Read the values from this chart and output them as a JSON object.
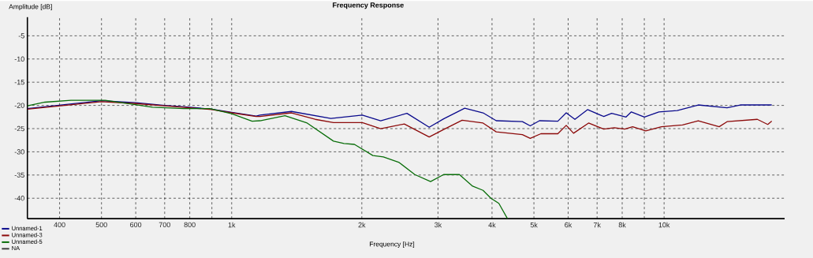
{
  "chart_data": {
    "type": "line",
    "title": "Frequency Response",
    "xlabel": "Frequency [Hz]",
    "ylabel": "Amplitude [dB]",
    "log": "x",
    "grid": true,
    "legend": "bottom left",
    "marker": "none",
    "line_style": "solid",
    "xlim": [
      337,
      19000
    ],
    "ylim": [
      -44.4,
      -1
    ],
    "xticks": [
      400,
      500,
      600,
      700,
      800,
      {
        "value": 900,
        "label": null
      },
      {
        "value": 1000,
        "label": "1k"
      },
      {
        "value": 2000,
        "label": "2k"
      },
      {
        "value": 3000,
        "label": "3k"
      },
      {
        "value": 4000,
        "label": "4k"
      },
      {
        "value": 5000,
        "label": "5k"
      },
      {
        "value": 6000,
        "label": "6k"
      },
      {
        "value": 7000,
        "label": "7k"
      },
      {
        "value": 8000,
        "label": "8k"
      },
      {
        "value": 9000,
        "label": null
      },
      {
        "value": 10000,
        "label": "10k"
      }
    ],
    "yticks": [
      -5,
      -10,
      -15,
      -20,
      -25,
      -30,
      -35,
      -40
    ],
    "series": [
      {
        "name": "Unnamed-1",
        "color": "#0a0a8c",
        "x": [
          337,
          500,
          600,
          700,
          800,
          900,
          1000,
          1139,
          1163,
          1375,
          1696,
          2005,
          2211,
          2543,
          2863,
          3092,
          3459,
          3814,
          4091,
          4702,
          4903,
          5150,
          5679,
          5938,
          6220,
          6652,
          7254,
          7565,
          8166,
          8400,
          9005,
          9727,
          10725,
          11995,
          13985,
          14997,
          17740
        ],
        "values": [
          -20.7,
          -19.0,
          -19.4,
          -20.0,
          -20.4,
          -20.8,
          -21.5,
          -22.3,
          -22.1,
          -21.3,
          -22.8,
          -22.1,
          -23.3,
          -21.7,
          -24.7,
          -22.9,
          -20.6,
          -21.6,
          -23.3,
          -23.5,
          -24.4,
          -23.3,
          -23.4,
          -21.6,
          -23.0,
          -20.9,
          -22.4,
          -21.7,
          -22.5,
          -21.4,
          -22.5,
          -21.4,
          -21.1,
          -19.9,
          -20.5,
          -19.9,
          -19.9
        ]
      },
      {
        "name": "Unnamed-3",
        "color": "#8c0a0a",
        "x": [
          337,
          500,
          600,
          700,
          800,
          900,
          1000,
          1139,
          1163,
          1375,
          1560,
          1720,
          2005,
          2211,
          2507,
          2863,
          3092,
          3412,
          3814,
          4091,
          4702,
          4903,
          5188,
          5679,
          5938,
          6175,
          6689,
          7254,
          7672,
          8110,
          8457,
          9071,
          9863,
          11030,
          11995,
          13410,
          13985,
          16430,
          17370,
          17740
        ],
        "values": [
          -20.8,
          -19.2,
          -19.6,
          -20.1,
          -20.5,
          -20.9,
          -21.6,
          -22.4,
          -22.4,
          -21.6,
          -23.0,
          -23.7,
          -23.7,
          -25.0,
          -24.0,
          -26.8,
          -25.2,
          -23.2,
          -23.8,
          -25.7,
          -26.3,
          -27.1,
          -26.1,
          -26.1,
          -24.3,
          -26.0,
          -23.8,
          -25.1,
          -24.8,
          -25.1,
          -24.6,
          -25.5,
          -24.6,
          -24.2,
          -23.3,
          -24.6,
          -23.5,
          -23.0,
          -24.1,
          -23.4
        ]
      },
      {
        "name": "Unnamed-5",
        "color": "#0a6e0a",
        "x": [
          337,
          370,
          425,
          510,
          586,
          656,
          775,
          890,
          1000,
          1115,
          1163,
          1328,
          1495,
          1720,
          1819,
          1923,
          2121,
          2243,
          2439,
          2652,
          2884,
          3092,
          3363,
          3607,
          3814,
          3976,
          4148,
          4343
        ],
        "values": [
          -20.1,
          -19.3,
          -18.9,
          -18.9,
          -19.7,
          -20.4,
          -20.7,
          -20.7,
          -21.8,
          -23.4,
          -23.3,
          -22.2,
          -23.8,
          -27.7,
          -28.2,
          -28.4,
          -30.8,
          -31.1,
          -32.3,
          -34.9,
          -36.4,
          -34.9,
          -34.9,
          -37.4,
          -38.3,
          -40.0,
          -41.1,
          -44.4
        ]
      },
      {
        "name": "NA",
        "color": "#404040"
      }
    ]
  }
}
